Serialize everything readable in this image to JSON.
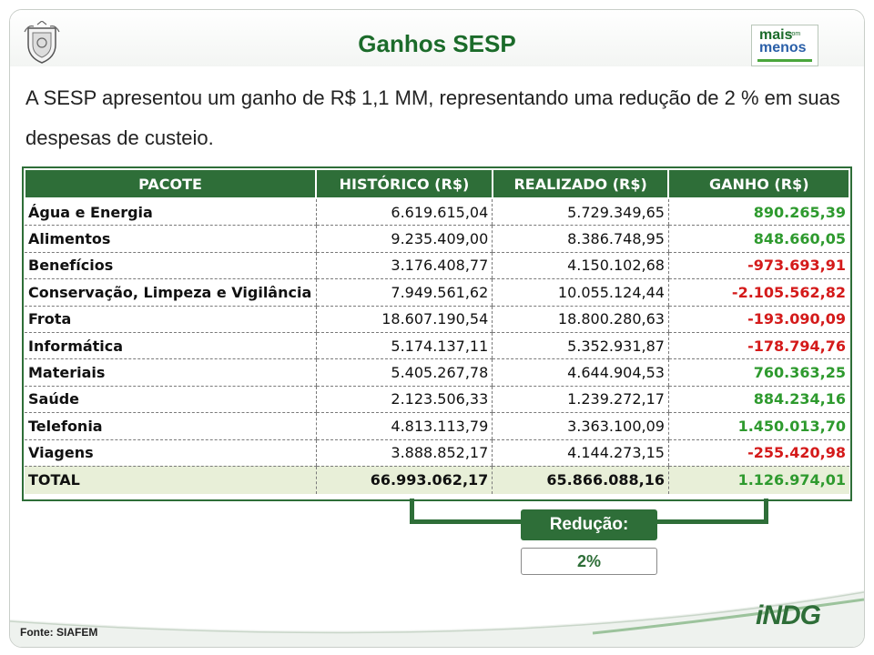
{
  "header": {
    "title": "Ganhos SESP",
    "logo": {
      "top": "mais",
      "sup": "com",
      "bottom": "menos"
    }
  },
  "intro": "A SESP apresentou um ganho de R$ 1,1 MM, representando uma redução de 2 % em suas despesas de custeio.",
  "table": {
    "headers": [
      "PACOTE",
      "HISTÓRICO (R$)",
      "REALIZADO (R$)",
      "GANHO (R$)"
    ],
    "rows": [
      {
        "pacote": "Água e Energia",
        "historico": "6.619.615,04",
        "realizado": "5.729.349,65",
        "ganho": "890.265,39",
        "status": "positive"
      },
      {
        "pacote": "Alimentos",
        "historico": "9.235.409,00",
        "realizado": "8.386.748,95",
        "ganho": "848.660,05",
        "status": "positive"
      },
      {
        "pacote": "Benefícios",
        "historico": "3.176.408,77",
        "realizado": "4.150.102,68",
        "ganho": "-973.693,91",
        "status": "negative"
      },
      {
        "pacote": "Conservação, Limpeza e Vigilância",
        "historico": "7.949.561,62",
        "realizado": "10.055.124,44",
        "ganho": "-2.105.562,82",
        "status": "negative"
      },
      {
        "pacote": "Frota",
        "historico": "18.607.190,54",
        "realizado": "18.800.280,63",
        "ganho": "-193.090,09",
        "status": "negative"
      },
      {
        "pacote": "Informática",
        "historico": "5.174.137,11",
        "realizado": "5.352.931,87",
        "ganho": "-178.794,76",
        "status": "negative"
      },
      {
        "pacote": "Materiais",
        "historico": "5.405.267,78",
        "realizado": "4.644.904,53",
        "ganho": "760.363,25",
        "status": "positive"
      },
      {
        "pacote": "Saúde",
        "historico": "2.123.506,33",
        "realizado": "1.239.272,17",
        "ganho": "884.234,16",
        "status": "positive"
      },
      {
        "pacote": "Telefonia",
        "historico": "4.813.113,79",
        "realizado": "3.363.100,09",
        "ganho": "1.450.013,70",
        "status": "positive"
      },
      {
        "pacote": "Viagens",
        "historico": "3.888.852,17",
        "realizado": "4.144.273,15",
        "ganho": "-255.420,98",
        "status": "negative"
      }
    ],
    "total": {
      "pacote": "TOTAL",
      "historico": "66.993.062,17",
      "realizado": "65.866.088,16",
      "ganho": "1.126.974,01",
      "status": "positive"
    }
  },
  "reducao": {
    "label": "Redução:",
    "value": "2%"
  },
  "footer": {
    "source": "Fonte: SIAFEM",
    "logo_text": "iNDG"
  },
  "colors": {
    "positive": "#2e9a2e",
    "negative": "#d41a1a",
    "header_green": "#2e6e38",
    "title_green": "#1b6b2a"
  }
}
